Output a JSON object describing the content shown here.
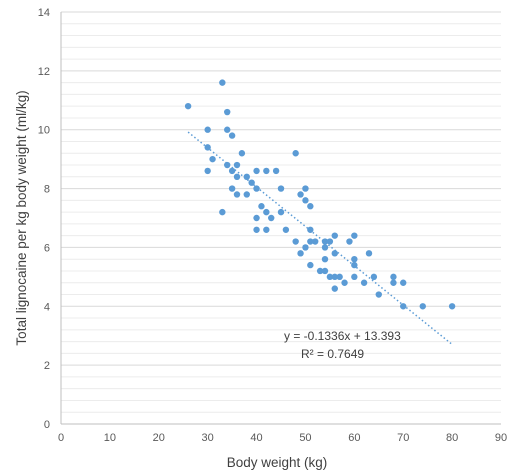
{
  "chart_data": {
    "type": "scatter",
    "title": "",
    "xlabel": "Body weight (kg)",
    "ylabel": "Total lignocaine per kg body weight (ml/kg)",
    "xlim": [
      0,
      90
    ],
    "ylim": [
      0,
      14
    ],
    "x_ticks": [
      "0",
      "10",
      "20",
      "30",
      "40",
      "50",
      "60",
      "70",
      "80",
      "90"
    ],
    "y_ticks": [
      "0",
      "2",
      "4",
      "6",
      "8",
      "10",
      "12",
      "14"
    ],
    "grid": "horizontal, major and minor",
    "legend": "none",
    "marker_color": "#5b9bd5",
    "trendline": {
      "type": "linear",
      "style": "dotted",
      "slope": -0.1336,
      "intercept": 13.393,
      "x_range": [
        26,
        80
      ],
      "equation_label": "y = -0.1336x + 13.393",
      "r2_label": "R² = 0.7649"
    },
    "points": [
      [
        26,
        10.8
      ],
      [
        30,
        10.0
      ],
      [
        30,
        9.4
      ],
      [
        30,
        8.6
      ],
      [
        31,
        9.0
      ],
      [
        33,
        11.6
      ],
      [
        33,
        7.2
      ],
      [
        34,
        10.6
      ],
      [
        34,
        10.0
      ],
      [
        34,
        8.8
      ],
      [
        35,
        9.8
      ],
      [
        35,
        8.6
      ],
      [
        35,
        8.0
      ],
      [
        36,
        8.8
      ],
      [
        36,
        8.4
      ],
      [
        36,
        7.8
      ],
      [
        37,
        9.2
      ],
      [
        38,
        8.4
      ],
      [
        38,
        7.8
      ],
      [
        39,
        8.2
      ],
      [
        40,
        8.6
      ],
      [
        40,
        8.0
      ],
      [
        40,
        7.0
      ],
      [
        40,
        6.6
      ],
      [
        41,
        7.4
      ],
      [
        42,
        8.6
      ],
      [
        42,
        7.2
      ],
      [
        42,
        6.6
      ],
      [
        43,
        7.0
      ],
      [
        44,
        8.6
      ],
      [
        45,
        8.0
      ],
      [
        45,
        7.2
      ],
      [
        46,
        6.6
      ],
      [
        48,
        9.2
      ],
      [
        48,
        6.2
      ],
      [
        49,
        7.8
      ],
      [
        49,
        5.8
      ],
      [
        50,
        8.0
      ],
      [
        50,
        7.6
      ],
      [
        50,
        6.0
      ],
      [
        51,
        7.4
      ],
      [
        51,
        6.6
      ],
      [
        51,
        6.2
      ],
      [
        51,
        5.4
      ],
      [
        52,
        6.2
      ],
      [
        53,
        5.2
      ],
      [
        54,
        6.2
      ],
      [
        54,
        6.0
      ],
      [
        54,
        5.6
      ],
      [
        54,
        5.2
      ],
      [
        55,
        6.2
      ],
      [
        55,
        5.0
      ],
      [
        56,
        6.4
      ],
      [
        56,
        5.8
      ],
      [
        56,
        5.0
      ],
      [
        56,
        4.6
      ],
      [
        57,
        5.0
      ],
      [
        58,
        4.8
      ],
      [
        59,
        6.2
      ],
      [
        60,
        6.4
      ],
      [
        60,
        5.6
      ],
      [
        60,
        5.4
      ],
      [
        60,
        5.0
      ],
      [
        62,
        4.8
      ],
      [
        63,
        5.8
      ],
      [
        64,
        5.0
      ],
      [
        65,
        4.4
      ],
      [
        68,
        5.0
      ],
      [
        68,
        4.8
      ],
      [
        70,
        4.8
      ],
      [
        70,
        4.0
      ],
      [
        74,
        4.0
      ],
      [
        80,
        4.0
      ]
    ]
  }
}
